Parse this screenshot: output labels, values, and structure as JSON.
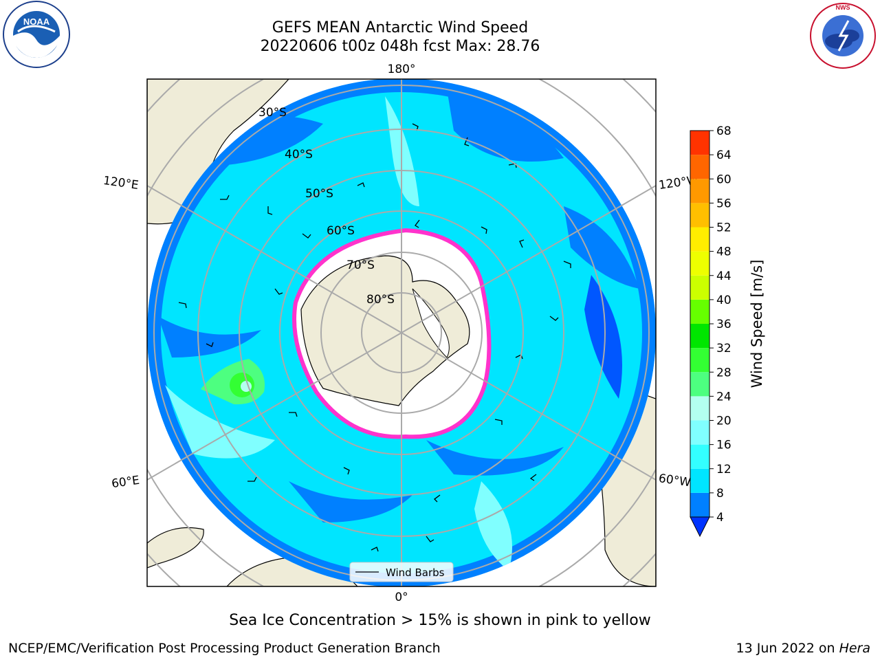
{
  "header": {
    "title_line1": "GEFS MEAN Antarctic Wind Speed",
    "title_line2": "20220606 t00z 048h fcst   Max: 28.76"
  },
  "logos": {
    "left": {
      "name": "noaa-logo",
      "text": "NOAA"
    },
    "right": {
      "name": "nws-logo",
      "text": "NATIONAL WEATHER SERVICE"
    }
  },
  "map": {
    "lon_labels": {
      "top": "180°",
      "bottom": "0°",
      "left_upper": "120°E",
      "left_lower": "60°E",
      "right_upper": "120°W",
      "right_lower": "60°W"
    },
    "lat_labels": [
      "30°S",
      "40°S",
      "50°S",
      "60°S",
      "70°S",
      "80°S"
    ],
    "legend": {
      "label": "Wind Barbs"
    }
  },
  "colorbar": {
    "label": "Wind Speed [m/s]",
    "ticks": [
      "4",
      "8",
      "12",
      "16",
      "20",
      "24",
      "28",
      "32",
      "36",
      "40",
      "44",
      "48",
      "52",
      "56",
      "60",
      "64",
      "68"
    ],
    "colors": [
      "#0080ff",
      "#00e5ff",
      "#33ffff",
      "#80ffff",
      "#b3fff0",
      "#4dff80",
      "#33ff33",
      "#00e600",
      "#66ff00",
      "#ccff00",
      "#eeff00",
      "#ffee00",
      "#ffbf00",
      "#ff9900",
      "#ff6600",
      "#ff3300",
      "#ff0000"
    ],
    "under_color": "#0033ff"
  },
  "caption": "Sea Ice Concentration > 15% is shown in pink to yellow",
  "footer": {
    "left": "NCEP/EMC/Verification Post Processing Product Generation Branch",
    "right_date": "13 Jun 2022 on ",
    "right_host": "Hera"
  }
}
